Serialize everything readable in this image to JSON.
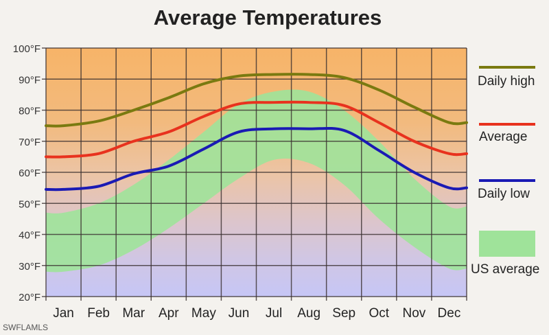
{
  "chart_data": {
    "type": "line",
    "title": "Average Temperatures",
    "categories": [
      "Jan",
      "Feb",
      "Mar",
      "Apr",
      "May",
      "Jun",
      "Jul",
      "Aug",
      "Sep",
      "Oct",
      "Nov",
      "Dec"
    ],
    "y_ticks": [
      "20°F",
      "30°F",
      "40°F",
      "50°F",
      "60°F",
      "70°F",
      "80°F",
      "90°F",
      "100°F"
    ],
    "ylim": [
      20,
      100
    ],
    "grid": true,
    "legend_placement": "right",
    "series": [
      {
        "name": "Daily high",
        "color": "#7a7a10",
        "values": [
          75,
          76.5,
          80,
          84,
          88.5,
          91,
          91.5,
          91.5,
          90.5,
          86.5,
          81,
          76
        ]
      },
      {
        "name": "Average",
        "color": "#e8321e",
        "values": [
          65,
          66,
          70,
          73,
          78,
          82,
          82.5,
          82.5,
          81.5,
          76,
          70,
          66
        ]
      },
      {
        "name": "Daily low",
        "color": "#1a1ab4",
        "values": [
          54.5,
          55.5,
          59.5,
          62,
          67.5,
          73,
          74,
          74,
          73.5,
          67,
          60,
          55
        ]
      }
    ],
    "band": {
      "name": "US average",
      "color": "#9fe39a",
      "low": [
        28,
        30,
        35,
        42,
        50,
        58,
        64,
        63,
        56,
        45,
        36,
        29
      ],
      "high": [
        47,
        50,
        56,
        64,
        73,
        82,
        86,
        86,
        80,
        70,
        58,
        49
      ]
    }
  },
  "watermark": "SWFLAMLS"
}
